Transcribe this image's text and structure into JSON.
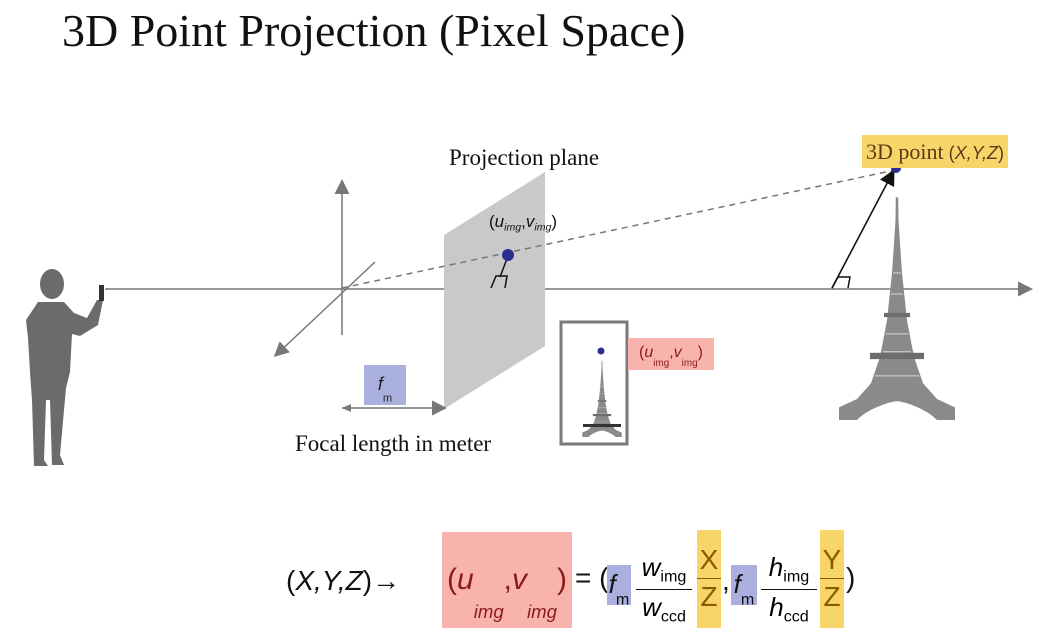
{
  "title": "3D Point Projection (Pixel Space)",
  "labels": {
    "projection_plane": "Projection plane",
    "focal_length": "Focal length in meter",
    "point3d": "3D point",
    "point3d_coords": "X,Y,Z",
    "sub_img": "img",
    "sub_m": "m",
    "sub_ccd": "ccd"
  },
  "equation": {
    "lhs_coords": "X,Y,Z",
    "arrow": "→",
    "x": "X",
    "y": "Y",
    "z": "Z"
  },
  "colors": {
    "highlight_yellow": "#f8d568",
    "highlight_pink": "#f9b3ad",
    "highlight_blue": "#aab0dd",
    "point_dot": "#2b2e8f",
    "plane_gray": "#c9c9c9"
  },
  "icons": [
    "person-silhouette",
    "eiffel-tower-image",
    "captured-image-tower"
  ]
}
